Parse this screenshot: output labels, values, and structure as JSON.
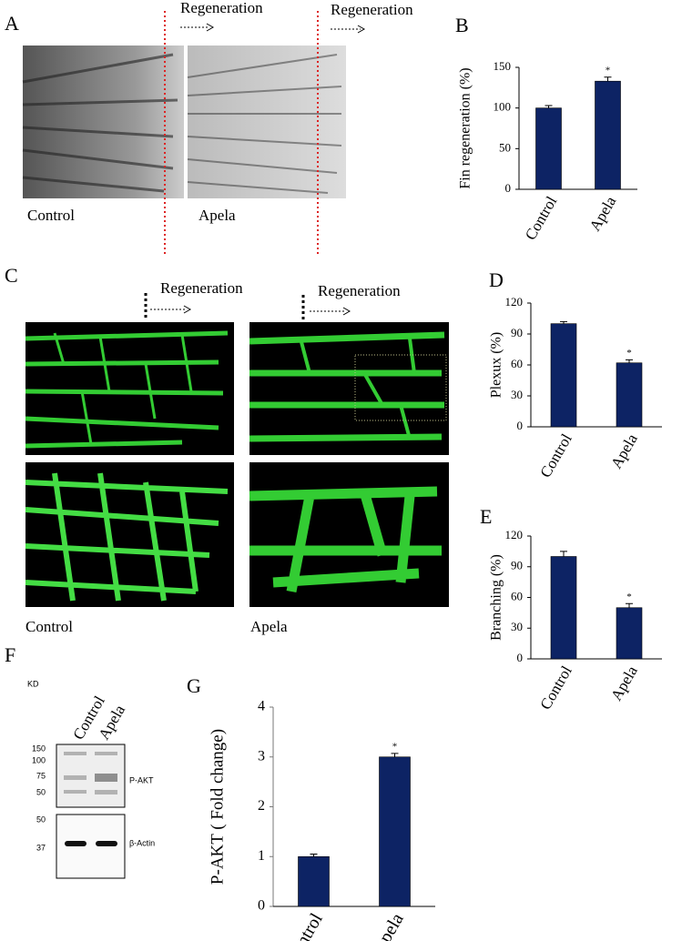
{
  "panels": [
    "A",
    "B",
    "C",
    "D",
    "E",
    "F",
    "G"
  ],
  "panel_a": {
    "arrow_labels": [
      "Regeneration",
      "Regeneration"
    ],
    "image_labels": [
      "Control",
      "Apela"
    ]
  },
  "panel_c": {
    "arrow_labels": [
      "Regeneration",
      "Regeneration"
    ],
    "image_labels": [
      "Control",
      "Apela"
    ]
  },
  "panel_f": {
    "unit": "KD",
    "lanes": [
      "Control",
      "Apela"
    ],
    "markers_top": [
      "150",
      "100",
      "75",
      "50"
    ],
    "markers_bottom": [
      "50",
      "37"
    ],
    "bands": [
      "P-AKT",
      "β-Actin"
    ]
  },
  "chart_data": [
    {
      "type": "bar",
      "y_label": "Fin regeneration (%)",
      "categories": [
        "Control",
        "Apela"
      ],
      "values": [
        100,
        133
      ],
      "errors": [
        3,
        5
      ],
      "significance": [
        null,
        "*"
      ],
      "color": "#0d2364",
      "ylim": [
        0,
        150
      ],
      "yticks": [
        0,
        50,
        100,
        150
      ]
    },
    {
      "type": "bar",
      "y_label": "Plexux (%)",
      "categories": [
        "Control",
        "Apela"
      ],
      "values": [
        100,
        62
      ],
      "errors": [
        2,
        3
      ],
      "significance": [
        null,
        "*"
      ],
      "color": "#0d2364",
      "ylim": [
        0,
        120
      ],
      "yticks": [
        0,
        30,
        60,
        90,
        120
      ]
    },
    {
      "type": "bar",
      "y_label": "Branching (%)",
      "categories": [
        "Control",
        "Apela"
      ],
      "values": [
        100,
        50
      ],
      "errors": [
        5,
        4
      ],
      "significance": [
        null,
        "*"
      ],
      "color": "#0d2364",
      "ylim": [
        0,
        120
      ],
      "yticks": [
        0,
        30,
        60,
        90,
        120
      ]
    },
    {
      "type": "bar",
      "y_label": "P-AKT ( Fold change)",
      "categories": [
        "Control",
        "Apela"
      ],
      "values": [
        1,
        3
      ],
      "errors": [
        0.05,
        0.07
      ],
      "significance": [
        null,
        "*"
      ],
      "color": "#0d2364",
      "ylim": [
        0,
        4
      ],
      "yticks": [
        0,
        1,
        2,
        3,
        4
      ]
    }
  ]
}
